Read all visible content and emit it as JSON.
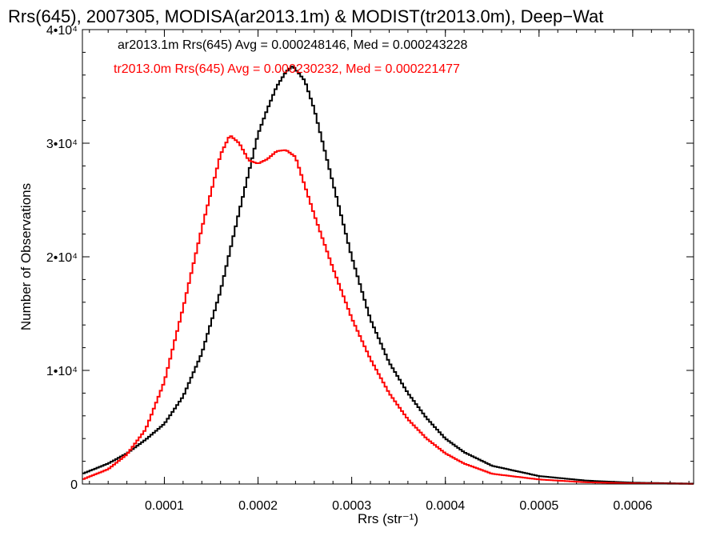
{
  "chart_data": {
    "type": "line",
    "title": "Rrs(645), 2007305, MODISA(ar2013.1m) & MODIST(tr2013.0m), Deep−Wat",
    "xlabel": "Rrs (str⁻¹)",
    "ylabel": "Number of Observations",
    "xlim": [
      1.25e-05,
      0.000665
    ],
    "ylim": [
      0,
      40000
    ],
    "x_ticks": [
      0.0001,
      0.0002,
      0.0003,
      0.0004,
      0.0005,
      0.0006
    ],
    "x_tick_labels": [
      "0.0001",
      "0.0002",
      "0.0003",
      "0.0004",
      "0.0005",
      "0.0006"
    ],
    "y_ticks": [
      0,
      10000,
      20000,
      30000,
      40000
    ],
    "y_tick_labels": [
      "0",
      "1•10⁴",
      "2•10⁴",
      "3•10⁴",
      "4•10⁴"
    ],
    "grid": false,
    "legend_placement": "top-left",
    "legend": [
      {
        "text": "ar2013.1m Rrs(645) Avg = 0.000248146, Med = 0.000243228",
        "color": "#000000"
      },
      {
        "text": "tr2013.0m Rrs(645) Avg = 0.000230232, Med = 0.000221477",
        "color": "#ff0000"
      }
    ],
    "series": [
      {
        "color": "#000000",
        "x": [
          1.25e-05,
          4e-05,
          6e-05,
          8e-05,
          0.0001,
          0.00012,
          0.00014,
          0.00016,
          0.00018,
          0.0002,
          0.00021,
          0.00022,
          0.00023,
          0.000237,
          0.00025,
          0.00026,
          0.00028,
          0.0003,
          0.00032,
          0.00034,
          0.00036,
          0.00038,
          0.0004,
          0.00042,
          0.00045,
          0.0005,
          0.00055,
          0.0006,
          0.000665
        ],
        "y": [
          900,
          1800,
          2700,
          3900,
          5300,
          7700,
          11500,
          17000,
          24000,
          30800,
          33000,
          35000,
          36300,
          36800,
          35500,
          33000,
          26500,
          20000,
          14500,
          10700,
          8000,
          5800,
          4000,
          2800,
          1600,
          700,
          300,
          120,
          30
        ]
      },
      {
        "color": "#ff0000",
        "x": [
          1.25e-05,
          4e-05,
          6e-05,
          8e-05,
          0.0001,
          0.00012,
          0.00014,
          0.00016,
          0.00017,
          0.00018,
          0.00019,
          0.0002,
          0.00021,
          0.00022,
          0.00023,
          0.00024,
          0.00026,
          0.00028,
          0.0003,
          0.00032,
          0.00034,
          0.00036,
          0.00038,
          0.0004,
          0.00042,
          0.00045,
          0.0005,
          0.00055,
          0.0006,
          0.000665
        ],
        "y": [
          400,
          1300,
          2600,
          4800,
          9000,
          15500,
          22500,
          29000,
          30700,
          30000,
          28500,
          28200,
          28600,
          29300,
          29400,
          28800,
          23700,
          19000,
          14600,
          11000,
          8000,
          5700,
          4000,
          2700,
          1800,
          900,
          400,
          150,
          60,
          10
        ]
      }
    ]
  }
}
